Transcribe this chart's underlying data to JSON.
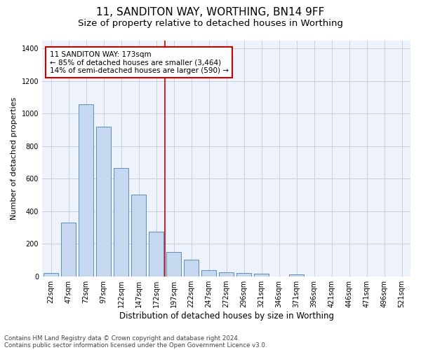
{
  "title": "11, SANDITON WAY, WORTHING, BN14 9FF",
  "subtitle": "Size of property relative to detached houses in Worthing",
  "xlabel": "Distribution of detached houses by size in Worthing",
  "ylabel": "Number of detached properties",
  "footer_line1": "Contains HM Land Registry data © Crown copyright and database right 2024.",
  "footer_line2": "Contains public sector information licensed under the Open Government Licence v3.0.",
  "categories": [
    "22sqm",
    "47sqm",
    "72sqm",
    "97sqm",
    "122sqm",
    "147sqm",
    "172sqm",
    "197sqm",
    "222sqm",
    "247sqm",
    "272sqm",
    "296sqm",
    "321sqm",
    "346sqm",
    "371sqm",
    "396sqm",
    "421sqm",
    "446sqm",
    "471sqm",
    "496sqm",
    "521sqm"
  ],
  "values": [
    20,
    330,
    1055,
    920,
    665,
    500,
    275,
    150,
    100,
    35,
    25,
    20,
    15,
    0,
    12,
    0,
    0,
    0,
    0,
    0,
    0
  ],
  "bar_color": "#c5d8f0",
  "bar_edgecolor": "#5b8ec7",
  "bar_linewidth": 0.7,
  "vline_x": 6.5,
  "vline_color": "#cc0000",
  "vline_linewidth": 1.2,
  "annotation_text": "11 SANDITON WAY: 173sqm\n← 85% of detached houses are smaller (3,464)\n14% of semi-detached houses are larger (590) →",
  "annotation_box_color": "#cc0000",
  "ylim": [
    0,
    1450
  ],
  "yticks": [
    0,
    200,
    400,
    600,
    800,
    1000,
    1200,
    1400
  ],
  "background_color": "#eef2fa",
  "grid_color": "#c8d0e0",
  "title_fontsize": 11,
  "subtitle_fontsize": 9.5,
  "xlabel_fontsize": 8.5,
  "ylabel_fontsize": 8,
  "tick_fontsize": 7,
  "annotation_fontsize": 7.5,
  "footer_fontsize": 6.2
}
